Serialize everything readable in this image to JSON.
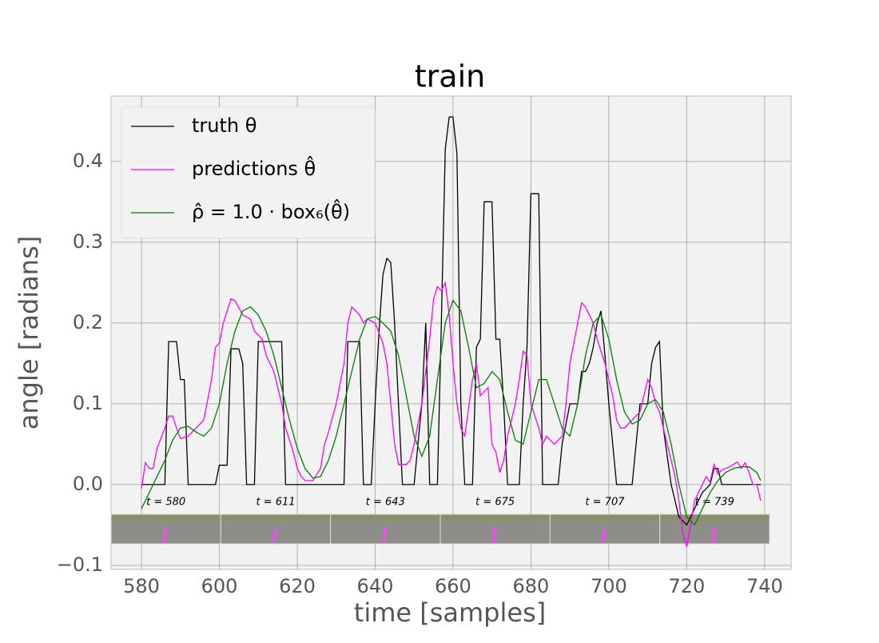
{
  "chart_data": {
    "type": "line",
    "title": "train",
    "xlabel": "time [samples]",
    "ylabel": "angle [radians]",
    "xlim": [
      572.2,
      746.8
    ],
    "ylim": [
      -0.105,
      0.481
    ],
    "xticks": [
      580,
      600,
      620,
      640,
      660,
      680,
      700,
      720,
      740
    ],
    "yticks": [
      {
        "value": -0.1,
        "label": "−0.1"
      },
      {
        "value": 0,
        "label": "0.0"
      },
      0.1,
      0.2,
      0.3,
      0.4
    ],
    "grid": true,
    "legend": "upper left",
    "thumbnail_labels": [
      "t = 580",
      "t = 611",
      "t = 643",
      "t = 675",
      "t = 707",
      "t = 739"
    ],
    "series": [
      {
        "name": "truth θ",
        "color": "#000000",
        "x": [
          580,
          586,
          587,
          589,
          590,
          591,
          592,
          599,
          600,
          602,
          603,
          605,
          606,
          607,
          609,
          610,
          616,
          617,
          632,
          633,
          636,
          637,
          639,
          640,
          641,
          642,
          643,
          644,
          645,
          646,
          647,
          650,
          652,
          653,
          654,
          656,
          657,
          658,
          659,
          660,
          661,
          662,
          663,
          665,
          666,
          667,
          668,
          670,
          671,
          672,
          673,
          674,
          677,
          678,
          679,
          680,
          682,
          683,
          687,
          688,
          690,
          692,
          693,
          694,
          695,
          696,
          697,
          698,
          699,
          700,
          701,
          702,
          706,
          708,
          710,
          711,
          712,
          713,
          714,
          716,
          718,
          720,
          722,
          724,
          726,
          727,
          728,
          729,
          739
        ],
        "values": [
          0,
          0,
          0.177,
          0.177,
          0.13,
          0.13,
          0,
          0,
          0.024,
          0.024,
          0.168,
          0.168,
          0.15,
          0,
          0,
          0.177,
          0.177,
          0,
          0,
          0.177,
          0.177,
          0,
          0,
          0.1,
          0.19,
          0.26,
          0.28,
          0.275,
          0.2,
          0.1,
          0,
          0,
          0.1,
          0.2,
          0,
          0,
          0.2,
          0.415,
          0.455,
          0.455,
          0.41,
          0.1,
          0,
          0,
          0.17,
          0.18,
          0.35,
          0.35,
          0.18,
          0.18,
          0.1,
          0,
          0,
          0.1,
          0.17,
          0.36,
          0.36,
          0,
          0,
          0.05,
          0.1,
          0.1,
          0.14,
          0.14,
          0.15,
          0.17,
          0.2,
          0.215,
          0.16,
          0.1,
          0.05,
          0,
          0,
          0.1,
          0.1,
          0.15,
          0.17,
          0.177,
          0.07,
          0,
          -0.04,
          -0.05,
          -0.03,
          -0.01,
          0,
          0.02,
          0.02,
          0,
          0
        ]
      },
      {
        "name": "predictions θ̂",
        "color": "#ff00ff",
        "x": [
          580,
          581,
          582,
          583,
          584,
          586,
          587,
          588,
          589,
          590,
          592,
          594,
          596,
          598,
          599,
          600,
          601,
          603,
          604,
          606,
          608,
          609,
          611,
          612,
          614,
          616,
          617,
          619,
          620,
          621,
          622,
          624,
          626,
          627,
          628,
          630,
          632,
          633,
          634,
          636,
          637,
          638,
          640,
          642,
          643,
          644,
          645,
          646,
          648,
          649,
          650,
          652,
          654,
          655,
          656,
          657,
          658,
          659,
          660,
          661,
          662,
          663,
          665,
          666,
          667,
          669,
          670,
          671,
          672,
          673,
          674,
          676,
          677,
          678,
          679,
          680,
          682,
          683,
          684,
          686,
          688,
          689,
          690,
          692,
          693,
          694,
          695,
          696,
          697,
          699,
          700,
          701,
          702,
          703,
          704,
          706,
          708,
          710,
          711,
          712,
          713,
          714,
          716,
          717,
          718,
          719,
          720,
          721,
          722,
          724,
          725,
          726,
          727,
          728,
          729,
          730,
          731,
          733,
          734,
          735,
          736,
          737,
          738,
          739
        ],
        "values": [
          -0.005,
          0.027,
          0.02,
          0.02,
          0.045,
          0.07,
          0.085,
          0.085,
          0.07,
          0.057,
          0.06,
          0.07,
          0.08,
          0.13,
          0.17,
          0.175,
          0.2,
          0.23,
          0.228,
          0.21,
          0.205,
          0.19,
          0.18,
          0.16,
          0.14,
          0.1,
          0.07,
          0.04,
          0.02,
          0.01,
          0.005,
          0.005,
          0.02,
          0.05,
          0.065,
          0.1,
          0.15,
          0.2,
          0.22,
          0.21,
          0.2,
          0.205,
          0.2,
          0.175,
          0.15,
          0.1,
          0.05,
          0.025,
          0.025,
          0.03,
          0.05,
          0.1,
          0.18,
          0.23,
          0.245,
          0.24,
          0.25,
          0.21,
          0.15,
          0.1,
          0.07,
          0.06,
          0.13,
          0.15,
          0.11,
          0.12,
          0.05,
          0.04,
          0.015,
          0.03,
          0.06,
          0.1,
          0.13,
          0.165,
          0.16,
          0.1,
          0.07,
          0.05,
          0.06,
          0.05,
          0.06,
          0.1,
          0.15,
          0.2,
          0.225,
          0.22,
          0.21,
          0.2,
          0.18,
          0.15,
          0.13,
          0.11,
          0.08,
          0.07,
          0.07,
          0.08,
          0.09,
          0.13,
          0.12,
          0.1,
          0.09,
          0.07,
          0.03,
          0.01,
          -0.02,
          -0.06,
          -0.077,
          -0.05,
          -0.02,
          0,
          0.01,
          0.003,
          0.025,
          0.013,
          0.018,
          0.02,
          0.022,
          0.028,
          0.02,
          0.027,
          0.015,
          0,
          0,
          -0.02
        ]
      },
      {
        "name": "ρ̂ = 1.0 · box₆(θ̂)",
        "color": "#008000",
        "x": [
          580,
          582,
          584,
          586,
          588,
          590,
          592,
          594,
          596,
          598,
          600,
          602,
          604,
          606,
          608,
          610,
          612,
          614,
          616,
          618,
          620,
          622,
          624,
          626,
          628,
          630,
          632,
          634,
          636,
          638,
          640,
          642,
          644,
          646,
          648,
          650,
          652,
          654,
          656,
          658,
          660,
          662,
          664,
          666,
          668,
          670,
          672,
          674,
          676,
          678,
          680,
          682,
          684,
          686,
          688,
          690,
          692,
          694,
          696,
          698,
          700,
          702,
          704,
          706,
          708,
          710,
          712,
          714,
          716,
          718,
          720,
          722,
          724,
          726,
          728,
          730,
          732,
          734,
          736,
          738,
          739
        ],
        "values": [
          -0.03,
          -0.01,
          0.01,
          0.03,
          0.055,
          0.07,
          0.072,
          0.065,
          0.06,
          0.07,
          0.1,
          0.15,
          0.19,
          0.215,
          0.22,
          0.21,
          0.19,
          0.16,
          0.12,
          0.08,
          0.045,
          0.02,
          0.008,
          0.01,
          0.03,
          0.06,
          0.1,
          0.14,
          0.18,
          0.205,
          0.208,
          0.2,
          0.19,
          0.16,
          0.11,
          0.06,
          0.035,
          0.06,
          0.13,
          0.2,
          0.228,
          0.215,
          0.17,
          0.12,
          0.125,
          0.14,
          0.13,
          0.09,
          0.055,
          0.05,
          0.09,
          0.13,
          0.13,
          0.1,
          0.07,
          0.06,
          0.1,
          0.16,
          0.2,
          0.21,
          0.18,
          0.13,
          0.09,
          0.075,
          0.08,
          0.1,
          0.105,
          0.09,
          0.05,
          0,
          -0.04,
          -0.05,
          -0.03,
          -0.01,
          0.005,
          0.015,
          0.02,
          0.022,
          0.022,
          0.015,
          0.005
        ]
      }
    ]
  }
}
